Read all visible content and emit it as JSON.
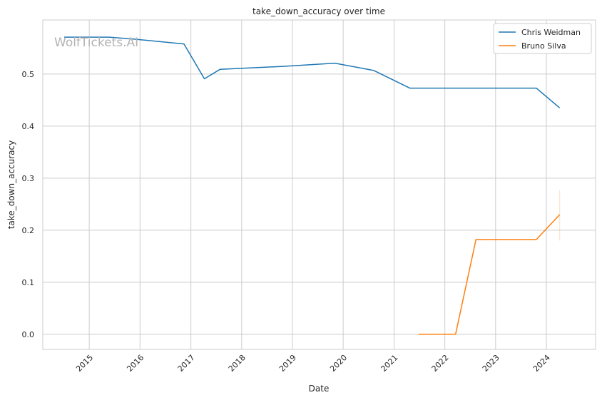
{
  "chart_data": {
    "type": "line",
    "title": "take_down_accuracy over time",
    "xlabel": "Date",
    "ylabel": "take_down_accuracy",
    "watermark": "WolfTickets.AI",
    "xlim": [
      "2014-02-01",
      "2024-12-20"
    ],
    "ylim": [
      -0.029,
      0.604
    ],
    "x_ticks": [
      "2015",
      "2016",
      "2017",
      "2018",
      "2019",
      "2020",
      "2021",
      "2022",
      "2023",
      "2024"
    ],
    "y_ticks": [
      0.0,
      0.1,
      0.2,
      0.3,
      0.4,
      0.5
    ],
    "y_tick_labels": [
      "0.0",
      "0.1",
      "0.2",
      "0.3",
      "0.4",
      "0.5"
    ],
    "grid": true,
    "legend_position": "top-right",
    "series": [
      {
        "name": "Chris Weidman",
        "color": "#1f77b4",
        "points": [
          {
            "x": "2014-07-05",
            "y": 0.571
          },
          {
            "x": "2015-05-23",
            "y": 0.571
          },
          {
            "x": "2015-11-28",
            "y": 0.567
          },
          {
            "x": "2016-11-12",
            "y": 0.558
          },
          {
            "x": "2017-04-08",
            "y": 0.491
          },
          {
            "x": "2017-07-29",
            "y": 0.509
          },
          {
            "x": "2018-11-03",
            "y": 0.515
          },
          {
            "x": "2019-11-02",
            "y": 0.521
          },
          {
            "x": "2020-08-08",
            "y": 0.507
          },
          {
            "x": "2021-04-24",
            "y": 0.473
          },
          {
            "x": "2023-10-21",
            "y": 0.473
          },
          {
            "x": "2024-04-06",
            "y": 0.435
          }
        ]
      },
      {
        "name": "Bruno Silva",
        "color": "#ff7f0e",
        "points": [
          {
            "x": "2021-06-26",
            "y": 0.0
          },
          {
            "x": "2022-03-19",
            "y": 0.0
          },
          {
            "x": "2022-08-13",
            "y": 0.182
          },
          {
            "x": "2023-10-21",
            "y": 0.182
          },
          {
            "x": "2024-04-06",
            "y": 0.23
          }
        ],
        "error_band": {
          "x": "2024-04-06",
          "low": 0.18,
          "high": 0.277
        }
      }
    ]
  }
}
